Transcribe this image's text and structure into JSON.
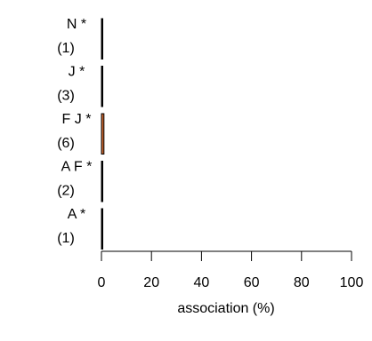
{
  "chart_data": {
    "type": "bar",
    "orientation": "horizontal",
    "categories": [
      "N *",
      "J *",
      "F J *",
      "A F *",
      "A *"
    ],
    "counts": [
      "(1)",
      "(3)",
      "(6)",
      "(2)",
      "(1)"
    ],
    "values": [
      0.2,
      0.5,
      1.0,
      0.4,
      0.2
    ],
    "bar_colors": [
      "#000000",
      "#000000",
      "#c8642d",
      "#000000",
      "#000000"
    ],
    "xlabel": "association (%)",
    "xlim": [
      0,
      100
    ],
    "xticks": [
      0,
      20,
      40,
      60,
      80,
      100
    ],
    "grid": false,
    "legend": "none"
  }
}
